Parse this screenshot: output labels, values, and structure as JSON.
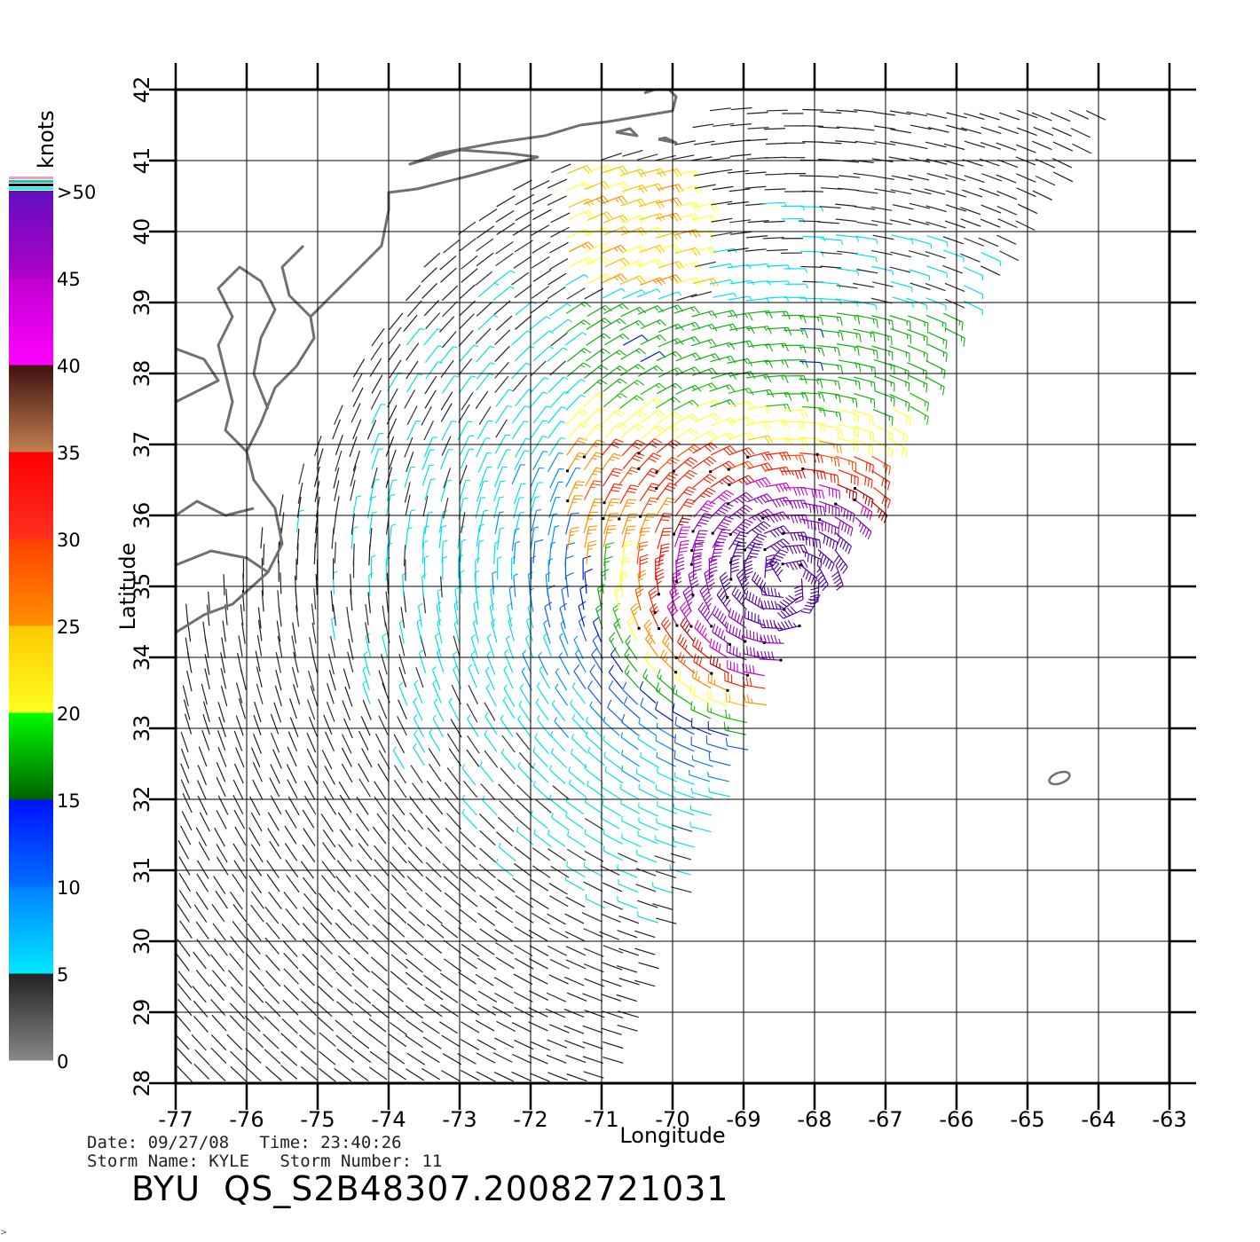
{
  "figure": {
    "colorbar_unit": "knots",
    "colorbar": {
      "segments": [
        {
          "from": 0,
          "to": 5,
          "colors": [
            "#888888",
            "#222222"
          ]
        },
        {
          "from": 5,
          "to": 10,
          "colors": [
            "#00e8ff",
            "#0080ff"
          ]
        },
        {
          "from": 10,
          "to": 15,
          "colors": [
            "#0070ff",
            "#0010ff"
          ]
        },
        {
          "from": 15,
          "to": 20,
          "colors": [
            "#006000",
            "#00ff00"
          ]
        },
        {
          "from": 20,
          "to": 25,
          "colors": [
            "#ffff20",
            "#ffc800"
          ]
        },
        {
          "from": 25,
          "to": 30,
          "colors": [
            "#ff9000",
            "#ff4000"
          ]
        },
        {
          "from": 30,
          "to": 35,
          "colors": [
            "#ff3020",
            "#ff0000"
          ]
        },
        {
          "from": 35,
          "to": 40,
          "colors": [
            "#c08050",
            "#401010"
          ]
        },
        {
          "from": 40,
          "to": 45,
          "colors": [
            "#ff00ff",
            "#c000d0"
          ]
        },
        {
          "from": 45,
          "to": 50,
          "colors": [
            "#b000c8",
            "#6010c0"
          ]
        }
      ],
      "labels": [
        "0",
        "5",
        "10",
        "15",
        "20",
        "25",
        "30",
        "35",
        "40",
        "45",
        ">50"
      ],
      "top_stripes": [
        "#f0a0b0",
        "#20c0c0",
        "#000000",
        "#00ffff"
      ]
    },
    "map": {
      "lon_range": [
        -77,
        -63
      ],
      "lat_range": [
        28,
        42
      ],
      "lon_ticks": [
        "-77",
        "-76",
        "-75",
        "-74",
        "-73",
        "-72",
        "-71",
        "-70",
        "-69",
        "-68",
        "-67",
        "-66",
        "-65",
        "-64",
        "-63"
      ],
      "lat_ticks": [
        "28",
        "29",
        "30",
        "31",
        "32",
        "33",
        "34",
        "35",
        "36",
        "37",
        "38",
        "39",
        "40",
        "41",
        "42"
      ],
      "xlabel": "Longitude",
      "ylabel": "Latitude",
      "coast_color": "#707070",
      "storm_center": {
        "lon": -68.4,
        "lat": 35.1
      },
      "storm_name": "KYLE",
      "swath_edge": [
        {
          "lon": -69.3,
          "lat": 42.0
        },
        {
          "lon": -64.0,
          "lat": 41.7
        },
        {
          "lon": -65.2,
          "lat": 40.0
        },
        {
          "lon": -66.0,
          "lat": 38.8
        },
        {
          "lon": -66.5,
          "lat": 37.8
        },
        {
          "lon": -67.2,
          "lat": 36.2
        },
        {
          "lon": -67.9,
          "lat": 34.9
        },
        {
          "lon": -68.4,
          "lat": 34.0
        },
        {
          "lon": -68.8,
          "lat": 33.0
        },
        {
          "lon": -69.2,
          "lat": 32.0
        },
        {
          "lon": -69.6,
          "lat": 31.0
        },
        {
          "lon": -70.0,
          "lat": 30.0
        },
        {
          "lon": -70.3,
          "lat": 29.0
        },
        {
          "lon": -70.8,
          "lat": 28.0
        },
        {
          "lon": -77.0,
          "lat": 28.0
        },
        {
          "lon": -77.0,
          "lat": 34.5
        },
        {
          "lon": -76.0,
          "lat": 35.2
        },
        {
          "lon": -75.3,
          "lat": 36.5
        },
        {
          "lon": -74.5,
          "lat": 38.0
        },
        {
          "lon": -73.6,
          "lat": 39.5
        },
        {
          "lon": -72.6,
          "lat": 40.4
        },
        {
          "lon": -71.5,
          "lat": 41.0
        },
        {
          "lon": -70.0,
          "lat": 41.2
        }
      ]
    },
    "footer": {
      "line1": "Date: 09/27/08   Time: 23:40:26",
      "line2": "Storm Name: KYLE   Storm Number: 11",
      "title": "BYU  QS_S2B48307.20082721031"
    }
  }
}
